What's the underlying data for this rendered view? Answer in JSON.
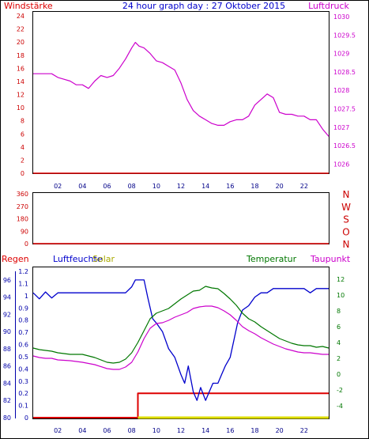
{
  "header": {
    "title": "24 hour graph day : 27 Oktober 2015",
    "left_label": "Windstärke",
    "right_label": "Luftdruck"
  },
  "colors": {
    "wind": "#dd0000",
    "pressure": "#cc00cc",
    "dir_axis": "#cc0000",
    "rain": "#dd0000",
    "humidity": "#0000cc",
    "solar": "#dddd00",
    "temperature": "#007700",
    "dewpoint": "#cc00cc",
    "tick_x": "#000088",
    "axis_left_top": "#cc0000",
    "axis_right_top": "#cc00cc",
    "axis_left_bottom": "#0000aa",
    "axis_right_bottom": "#007700"
  },
  "chart_data": [
    {
      "type": "line",
      "x_ticks": [
        "02",
        "04",
        "06",
        "08",
        "10",
        "12",
        "14",
        "16",
        "18",
        "20",
        "22"
      ],
      "y_left_ticks": [
        "24",
        "22",
        "20",
        "18",
        "16",
        "14",
        "12",
        "10",
        "8",
        "6",
        "4",
        "2",
        "0"
      ],
      "y_left_range": [
        0,
        24
      ],
      "y_right_ticks": [
        "1030",
        "1029.5",
        "1029",
        "1028.5",
        "1028",
        "1027.5",
        "1027",
        "1026.5",
        "1026"
      ],
      "y_right_range": [
        1025.75,
        1030.15
      ],
      "series": [
        {
          "key": "wind",
          "axis": "left",
          "x": [
            0,
            24
          ],
          "values": [
            0,
            0
          ]
        },
        {
          "key": "pressure",
          "axis": "right",
          "x": [
            0,
            0.5,
            1,
            1.5,
            2,
            2.5,
            3,
            3.5,
            4,
            4.5,
            5,
            5.5,
            6,
            6.5,
            7,
            7.5,
            8,
            8.3,
            8.6,
            9,
            9.5,
            10,
            10.5,
            11,
            11.5,
            12,
            12.5,
            13,
            13.5,
            14,
            14.5,
            15,
            15.5,
            16,
            16.5,
            17,
            17.5,
            18,
            18.5,
            19,
            19.5,
            20,
            20.5,
            21,
            21.5,
            22,
            22.5,
            23,
            23.5,
            24
          ],
          "values": [
            1028.45,
            1028.45,
            1028.45,
            1028.45,
            1028.35,
            1028.3,
            1028.25,
            1028.15,
            1028.15,
            1028.05,
            1028.25,
            1028.4,
            1028.35,
            1028.4,
            1028.6,
            1028.85,
            1029.15,
            1029.3,
            1029.2,
            1029.15,
            1029.0,
            1028.8,
            1028.75,
            1028.65,
            1028.55,
            1028.2,
            1027.75,
            1027.45,
            1027.3,
            1027.2,
            1027.1,
            1027.05,
            1027.05,
            1027.15,
            1027.2,
            1027.2,
            1027.3,
            1027.6,
            1027.75,
            1027.9,
            1027.8,
            1027.4,
            1027.35,
            1027.35,
            1027.3,
            1027.3,
            1027.2,
            1027.2,
            1026.95,
            1026.75
          ]
        }
      ]
    },
    {
      "type": "line",
      "y_left_ticks": [
        "360",
        "270",
        "180",
        "90",
        "0"
      ],
      "y_left_range": [
        0,
        360
      ],
      "direction_labels": [
        "N",
        "W",
        "S",
        "O",
        "N"
      ],
      "series": [
        {
          "key": "wind_direction",
          "axis": "left",
          "x": [
            0,
            24
          ],
          "values": [
            0,
            0
          ]
        }
      ]
    },
    {
      "type": "line",
      "x_ticks": [
        "02",
        "04",
        "06",
        "08",
        "10",
        "12",
        "14",
        "16",
        "18",
        "20",
        "22"
      ],
      "header_labels": {
        "rain": "Regen",
        "humidity": "Luftfeuchte",
        "solar": "Solar",
        "temperature": "Temperatur",
        "dewpoint": "Taupunkt"
      },
      "y_left_outer_ticks": [
        "96",
        "94",
        "92",
        "90",
        "88",
        "86",
        "84",
        "82",
        "80"
      ],
      "y_left_outer_range": [
        80,
        97
      ],
      "y_left_inner_ticks": [
        "1.2",
        "1.1",
        "1",
        "0.9",
        "0.8",
        "0.7",
        "0.6",
        "0.5",
        "0.4",
        "0.3",
        "0.2",
        "0.1",
        "0"
      ],
      "y_left_inner_range": [
        0,
        1.2
      ],
      "y_right_ticks": [
        "12",
        "10",
        "8",
        "6",
        "4",
        "2",
        "0",
        "-2",
        "-4"
      ],
      "y_right_range": [
        -5.5,
        13
      ],
      "series": [
        {
          "key": "rain",
          "axis": "left_inner",
          "x": [
            0,
            8.5,
            8.5,
            24
          ],
          "values": [
            0,
            0,
            0.2,
            0.2
          ]
        },
        {
          "key": "solar",
          "axis": "left_inner",
          "x": [
            8.5,
            24
          ],
          "values": [
            0,
            0
          ]
        },
        {
          "key": "humidity",
          "axis": "left_outer",
          "x": [
            0,
            0.5,
            1,
            1.5,
            2,
            3,
            4,
            5,
            6,
            7,
            7.5,
            8,
            8.3,
            8.6,
            9,
            9.3,
            9.7,
            10,
            10.5,
            11,
            11.5,
            12,
            12.3,
            12.6,
            13,
            13.3,
            13.6,
            14,
            14.3,
            14.6,
            15,
            15.3,
            15.6,
            16,
            16.3,
            16.6,
            17,
            17.5,
            18,
            18.5,
            19,
            19.5,
            20,
            20.5,
            21,
            22,
            22.5,
            23,
            23.5,
            24
          ],
          "values": [
            94.5,
            93.8,
            94.6,
            93.9,
            94.5,
            94.5,
            94.5,
            94.5,
            94.5,
            94.5,
            94.5,
            95.2,
            96.0,
            96.0,
            96.0,
            94.0,
            91.5,
            91.0,
            90.0,
            88.0,
            87.0,
            85.0,
            84.0,
            86.0,
            83.0,
            82.0,
            83.5,
            82.0,
            83.0,
            84.0,
            84.0,
            85.0,
            86.0,
            87.0,
            89.0,
            91.0,
            92.5,
            93.0,
            94.0,
            94.5,
            94.5,
            95.0,
            95.0,
            95.0,
            95.0,
            95.0,
            94.5,
            95.0,
            95.0,
            95.0
          ]
        },
        {
          "key": "temperature",
          "axis": "right",
          "x": [
            0,
            0.5,
            1,
            1.5,
            2,
            3,
            4,
            5,
            6,
            6.5,
            7,
            7.5,
            8,
            8.5,
            9,
            9.5,
            10,
            10.5,
            11,
            11.5,
            12,
            12.5,
            13,
            13.5,
            14,
            14.5,
            15,
            15.5,
            16,
            16.5,
            17,
            17.5,
            18,
            18.5,
            19,
            19.5,
            20,
            20.5,
            21,
            21.5,
            22,
            22.5,
            23,
            23.5,
            24
          ],
          "values": [
            3.3,
            3.1,
            3.0,
            2.9,
            2.7,
            2.5,
            2.5,
            2.1,
            1.5,
            1.4,
            1.5,
            1.9,
            2.7,
            4.0,
            5.5,
            7.0,
            7.7,
            8.0,
            8.3,
            8.9,
            9.5,
            10.0,
            10.5,
            10.6,
            11.1,
            10.9,
            10.8,
            10.2,
            9.5,
            8.7,
            7.7,
            7.0,
            6.6,
            6.0,
            5.5,
            5.0,
            4.5,
            4.2,
            3.9,
            3.7,
            3.6,
            3.6,
            3.4,
            3.5,
            3.3
          ]
        },
        {
          "key": "dewpoint",
          "axis": "right",
          "x": [
            0,
            0.5,
            1,
            1.5,
            2,
            3,
            4,
            5,
            6,
            6.5,
            7,
            7.5,
            8,
            8.5,
            9,
            9.5,
            10,
            10.5,
            11,
            11.5,
            12,
            12.5,
            13,
            13.5,
            14,
            14.5,
            15,
            15.5,
            16,
            16.5,
            17,
            17.5,
            18,
            18.5,
            19,
            19.5,
            20,
            20.5,
            21,
            21.5,
            22,
            22.5,
            23,
            23.5,
            24
          ],
          "values": [
            2.3,
            2.1,
            2.0,
            2.0,
            1.8,
            1.7,
            1.5,
            1.2,
            0.7,
            0.6,
            0.6,
            0.9,
            1.5,
            2.8,
            4.5,
            5.8,
            6.4,
            6.5,
            6.8,
            7.2,
            7.5,
            7.8,
            8.3,
            8.5,
            8.6,
            8.6,
            8.4,
            8.0,
            7.5,
            6.8,
            6.0,
            5.5,
            5.1,
            4.6,
            4.2,
            3.8,
            3.5,
            3.2,
            3.0,
            2.8,
            2.7,
            2.7,
            2.6,
            2.5,
            2.5
          ]
        }
      ]
    }
  ]
}
